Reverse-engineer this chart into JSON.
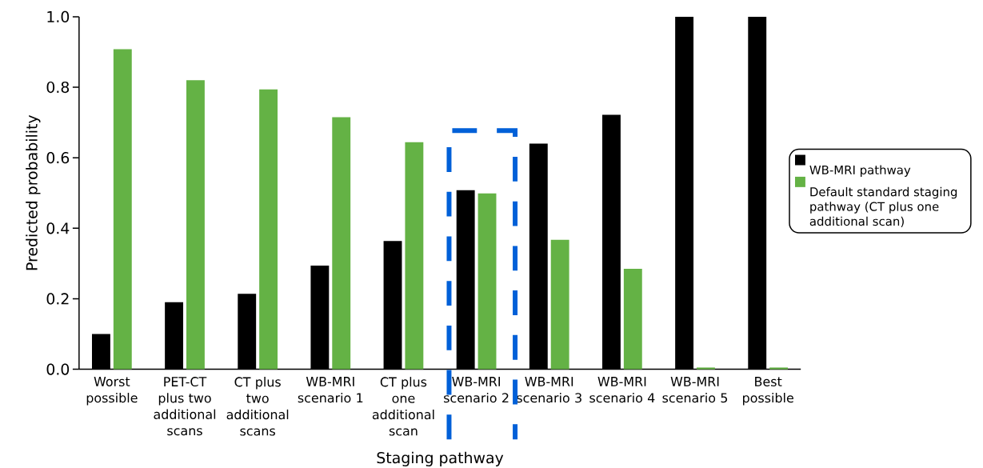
{
  "chart_data": {
    "type": "bar",
    "xlabel": "Staging pathway",
    "ylabel": "Predicted probability",
    "categories": [
      "Worst possible",
      "PET-CT plus two additional scans",
      "CT plus two additional scans",
      "WB-MRI scenario 1",
      "CT plus one additional scan",
      "WB-MRI scenario 2",
      "WB-MRI scenario 3",
      "WB-MRI scenario 4",
      "WB-MRI scenario 5",
      "Best possible"
    ],
    "series": [
      {
        "name": "WB-MRI pathway",
        "color": "#000000",
        "values": [
          0.1,
          0.19,
          0.214,
          0.294,
          0.364,
          0.508,
          0.64,
          0.722,
          1.0,
          1.0
        ]
      },
      {
        "name": "Default standard staging pathway (CT plus one additional scan)",
        "color": "#64b245",
        "values": [
          0.908,
          0.82,
          0.794,
          0.715,
          0.644,
          0.499,
          0.367,
          0.285,
          0.005,
          0.005
        ]
      }
    ],
    "ylim": [
      0,
      1
    ],
    "yticks": [
      {
        "value": 0,
        "label": "0.0"
      },
      0.2,
      0.4,
      0.6,
      0.8,
      {
        "value": 1,
        "label": "1.0"
      }
    ],
    "legend": "right"
  }
}
